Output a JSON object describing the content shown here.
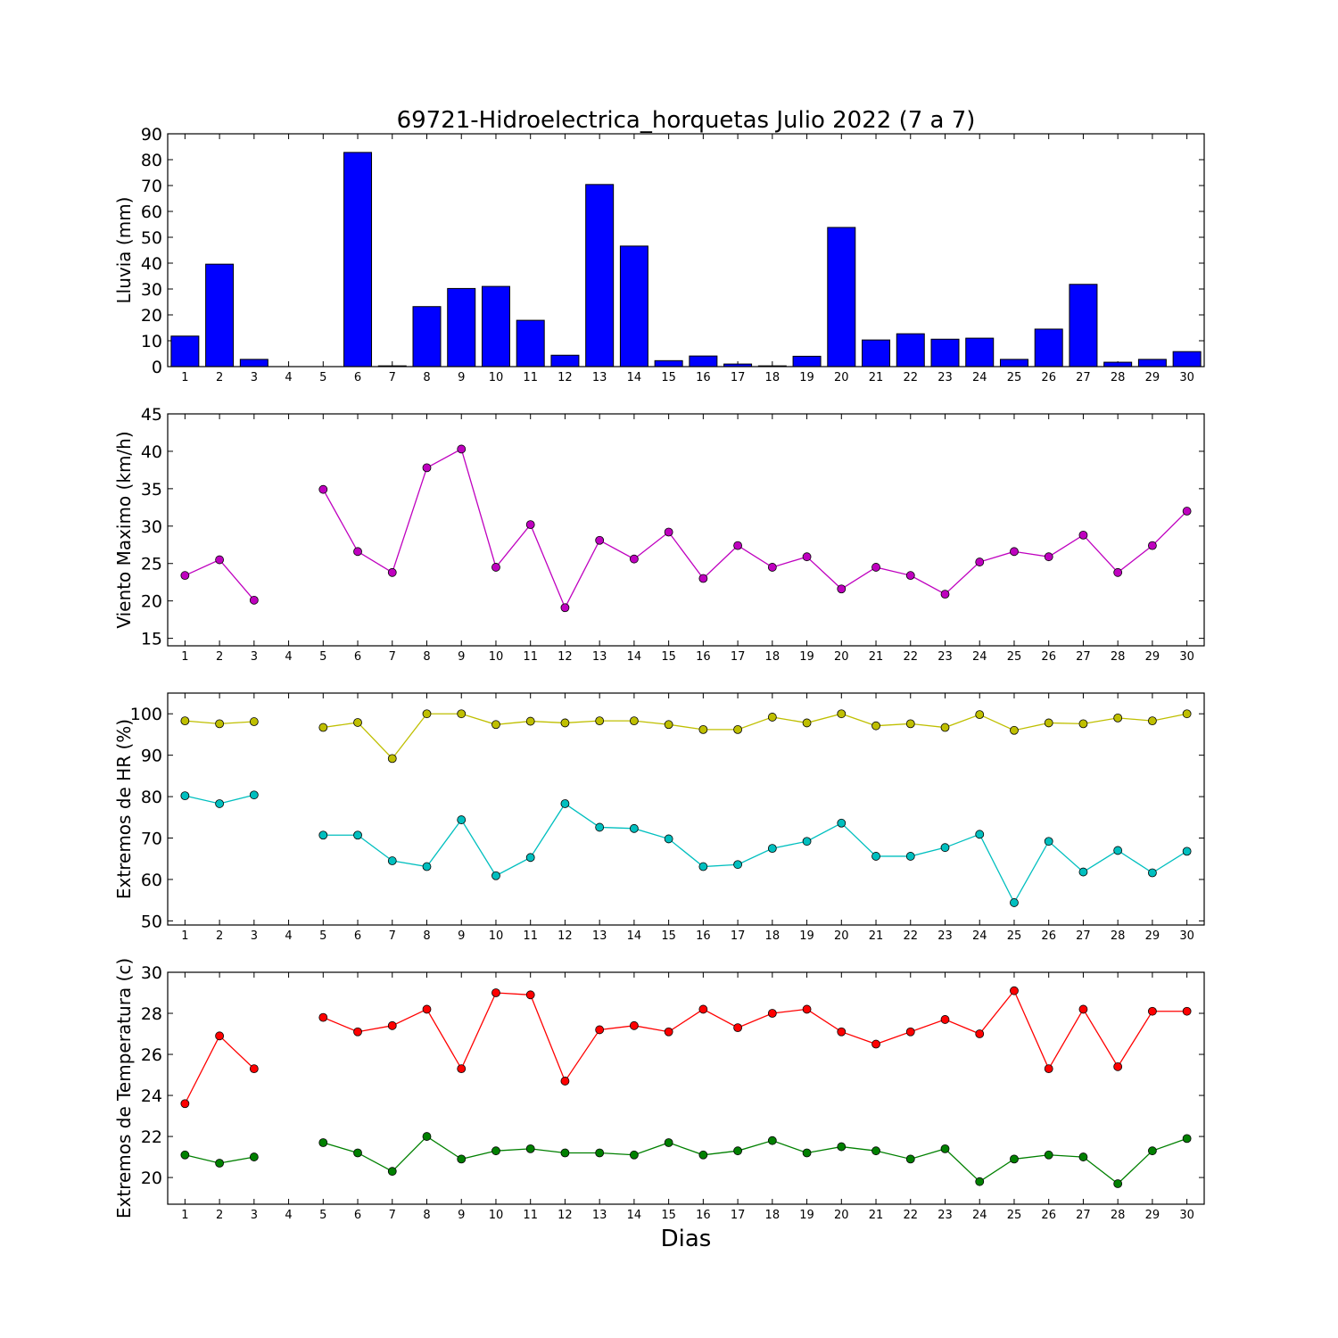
{
  "figure": {
    "title": "69721-Hidroelectrica_horquetas Julio 2022  (7 a 7)",
    "xlabel": "Dias"
  },
  "chart_data": [
    {
      "type": "bar",
      "ylabel": "Lluvia (mm)",
      "x": [
        1,
        2,
        3,
        4,
        5,
        6,
        7,
        8,
        9,
        10,
        11,
        12,
        13,
        14,
        15,
        16,
        17,
        18,
        19,
        20,
        21,
        22,
        23,
        24,
        25,
        26,
        27,
        28,
        29,
        30
      ],
      "xticks": [
        "1",
        "2",
        "3",
        "4",
        "5",
        "6",
        "7",
        "8",
        "9",
        "10",
        "11",
        "12",
        "13",
        "14",
        "15",
        "16",
        "17",
        "18",
        "19",
        "20",
        "21",
        "22",
        "23",
        "24",
        "25",
        "26",
        "27",
        "28",
        "29",
        "30"
      ],
      "ylim": [
        0,
        90
      ],
      "yticks": [
        0,
        10,
        20,
        30,
        40,
        50,
        60,
        70,
        80,
        90
      ],
      "series": [
        {
          "color": "#0000ff",
          "values": [
            11.8,
            39.6,
            2.8,
            0,
            0,
            82.8,
            0.3,
            23.2,
            30.2,
            31.0,
            17.9,
            4.4,
            70.4,
            46.6,
            2.3,
            4.1,
            1.0,
            0.3,
            4.0,
            53.8,
            10.3,
            12.7,
            10.6,
            11.0,
            2.8,
            14.5,
            31.8,
            1.7,
            2.8,
            5.8
          ]
        }
      ]
    },
    {
      "type": "line",
      "ylabel": "Viento Maximo (km/h)",
      "x": [
        1,
        2,
        3,
        4,
        5,
        6,
        7,
        8,
        9,
        10,
        11,
        12,
        13,
        14,
        15,
        16,
        17,
        18,
        19,
        20,
        21,
        22,
        23,
        24,
        25,
        26,
        27,
        28,
        29,
        30
      ],
      "xticks": [
        "1",
        "2",
        "3",
        "4",
        "5",
        "6",
        "7",
        "8",
        "9",
        "10",
        "11",
        "12",
        "13",
        "14",
        "15",
        "16",
        "17",
        "18",
        "19",
        "20",
        "21",
        "22",
        "23",
        "24",
        "25",
        "26",
        "27",
        "28",
        "29",
        "30"
      ],
      "ylim": [
        14,
        45
      ],
      "yticks": [
        15,
        20,
        25,
        30,
        35,
        40,
        45
      ],
      "series": [
        {
          "color": "#bf00bf",
          "values": [
            23.4,
            25.5,
            20.1,
            null,
            34.9,
            26.6,
            23.8,
            37.8,
            40.3,
            24.5,
            30.2,
            19.1,
            28.1,
            25.6,
            29.2,
            23.0,
            27.4,
            24.5,
            25.9,
            21.6,
            24.5,
            23.4,
            20.9,
            25.2,
            26.6,
            25.9,
            28.8,
            23.8,
            27.4,
            32.0
          ]
        }
      ]
    },
    {
      "type": "line",
      "ylabel": "Extremos de HR (%)",
      "x": [
        1,
        2,
        3,
        4,
        5,
        6,
        7,
        8,
        9,
        10,
        11,
        12,
        13,
        14,
        15,
        16,
        17,
        18,
        19,
        20,
        21,
        22,
        23,
        24,
        25,
        26,
        27,
        28,
        29,
        30
      ],
      "xticks": [
        "1",
        "2",
        "3",
        "4",
        "5",
        "6",
        "7",
        "8",
        "9",
        "10",
        "11",
        "12",
        "13",
        "14",
        "15",
        "16",
        "17",
        "18",
        "19",
        "20",
        "21",
        "22",
        "23",
        "24",
        "25",
        "26",
        "27",
        "28",
        "29",
        "30"
      ],
      "ylim": [
        49,
        105
      ],
      "yticks": [
        50,
        60,
        70,
        80,
        90,
        100
      ],
      "series": [
        {
          "color": "#bfbf00",
          "values": [
            98.3,
            97.6,
            98.1,
            null,
            96.7,
            97.9,
            89.2,
            100,
            100,
            97.4,
            98.2,
            97.8,
            98.3,
            98.3,
            97.4,
            96.2,
            96.2,
            99.2,
            97.8,
            100,
            97.1,
            97.6,
            96.7,
            99.8,
            96.0,
            97.8,
            97.6,
            99.0,
            98.3,
            100
          ]
        },
        {
          "color": "#00bfbf",
          "values": [
            80.2,
            78.3,
            80.4,
            null,
            70.7,
            70.7,
            64.5,
            63.1,
            74.4,
            60.9,
            65.3,
            78.3,
            72.6,
            72.3,
            69.8,
            63.1,
            63.6,
            67.5,
            69.2,
            73.6,
            65.6,
            65.6,
            67.7,
            70.9,
            54.4,
            69.2,
            61.8,
            67.0,
            61.6,
            66.8
          ]
        }
      ]
    },
    {
      "type": "line",
      "ylabel": "Extremos de Temperatura (c)",
      "x": [
        1,
        2,
        3,
        4,
        5,
        6,
        7,
        8,
        9,
        10,
        11,
        12,
        13,
        14,
        15,
        16,
        17,
        18,
        19,
        20,
        21,
        22,
        23,
        24,
        25,
        26,
        27,
        28,
        29,
        30
      ],
      "xticks": [
        "1",
        "2",
        "3",
        "4",
        "5",
        "6",
        "7",
        "8",
        "9",
        "10",
        "11",
        "12",
        "13",
        "14",
        "15",
        "16",
        "17",
        "18",
        "19",
        "20",
        "21",
        "22",
        "23",
        "24",
        "25",
        "26",
        "27",
        "28",
        "29",
        "30"
      ],
      "ylim": [
        18.7,
        30
      ],
      "yticks": [
        20,
        22,
        24,
        26,
        28,
        30
      ],
      "series": [
        {
          "color": "#ff0000",
          "values": [
            23.6,
            26.9,
            25.3,
            null,
            27.8,
            27.1,
            27.4,
            28.2,
            25.3,
            29.0,
            28.9,
            24.7,
            27.2,
            27.4,
            27.1,
            28.2,
            27.3,
            28.0,
            28.2,
            27.1,
            26.5,
            27.1,
            27.7,
            27.0,
            29.1,
            25.3,
            28.2,
            25.4,
            28.1,
            28.1
          ]
        },
        {
          "color": "#008000",
          "values": [
            21.1,
            20.7,
            21.0,
            null,
            21.7,
            21.2,
            20.3,
            22.0,
            20.9,
            21.3,
            21.4,
            21.2,
            21.2,
            21.1,
            21.7,
            21.1,
            21.3,
            21.8,
            21.2,
            21.5,
            21.3,
            20.9,
            21.4,
            19.8,
            20.9,
            21.1,
            21.0,
            19.7,
            21.3,
            21.9
          ]
        }
      ]
    }
  ]
}
